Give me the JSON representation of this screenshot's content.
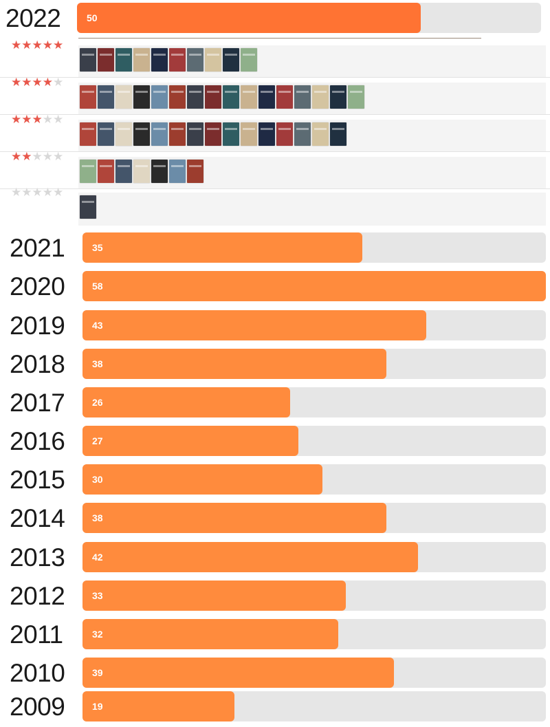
{
  "chart_data": {
    "type": "bar",
    "orientation": "horizontal",
    "title": "",
    "xlabel": "",
    "ylabel": "",
    "xlim": [
      0,
      58
    ],
    "categories": [
      "2022",
      "2021",
      "2020",
      "2019",
      "2018",
      "2017",
      "2016",
      "2015",
      "2014",
      "2013",
      "2012",
      "2011",
      "2010",
      "2009"
    ],
    "values": [
      50,
      35,
      58,
      43,
      38,
      26,
      27,
      30,
      38,
      42,
      33,
      32,
      39,
      19
    ],
    "labels": [
      "50",
      "35",
      "58",
      "43",
      "38",
      "26",
      "27",
      "30",
      "38",
      "42",
      "33",
      "32",
      "39",
      "19"
    ],
    "expanded_year": "2022",
    "rating_breakdown": [
      {
        "stars": 5,
        "books": 10
      },
      {
        "stars": 4,
        "books": 16
      },
      {
        "stars": 3,
        "books": 15
      },
      {
        "stars": 2,
        "books": 7
      },
      {
        "stars": 0,
        "books": 1
      }
    ],
    "colors": {
      "bar_current": "#ff7333",
      "bar": "#ff8b3d",
      "track": "#e6e6e6",
      "star_on": "#e8574b",
      "star_off": "#d8d8d8"
    },
    "grid": false,
    "legend": "none"
  },
  "icons": {
    "star": "star-icon",
    "cover": "book-cover-thumbnail"
  }
}
